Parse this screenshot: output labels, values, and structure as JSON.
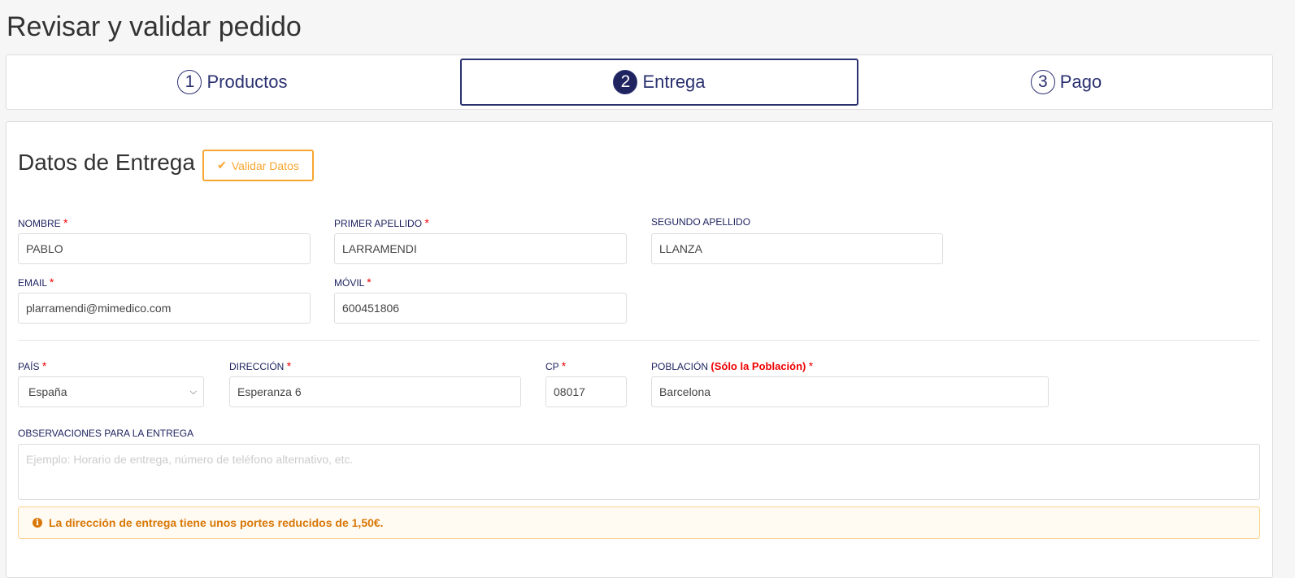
{
  "page_title": "Revisar y validar pedido",
  "steps": [
    {
      "num": "1",
      "label": "Productos"
    },
    {
      "num": "2",
      "label": "Entrega",
      "active": true
    },
    {
      "num": "3",
      "label": "Pago"
    }
  ],
  "section": {
    "title": "Datos de Entrega",
    "validate_label": "Validar Datos"
  },
  "fields": {
    "nombre": {
      "label": "Nombre",
      "value": "PABLO",
      "required": "*"
    },
    "apellido1": {
      "label": "Primer Apellido",
      "value": "LARRAMENDI",
      "required": "*"
    },
    "apellido2": {
      "label": "Segundo Apellido",
      "value": "LLANZA"
    },
    "email": {
      "label": "Email",
      "value": "plarramendi@mimedico.com",
      "required": "*"
    },
    "movil": {
      "label": "Móvil",
      "value": "600451806",
      "required": "*"
    },
    "pais": {
      "label": "País",
      "value": "España",
      "required": "*"
    },
    "direccion": {
      "label": "Dirección",
      "value": "Esperanza 6",
      "required": "*"
    },
    "cp": {
      "label": "CP",
      "value": "08017",
      "required": "*"
    },
    "poblacion": {
      "label": "Población",
      "note": "(Sólo la Población)",
      "value": "Barcelona",
      "required": "*"
    },
    "observaciones": {
      "label": "Observaciones para la entrega",
      "placeholder": "Ejemplo: Horario de entrega, número de teléfono alternativo, etc."
    }
  },
  "alert": {
    "icon": "info-circle-icon",
    "text": "La dirección de entrega tiene unos portes reducidos de 1,50€.",
    "color": "#d97706"
  }
}
